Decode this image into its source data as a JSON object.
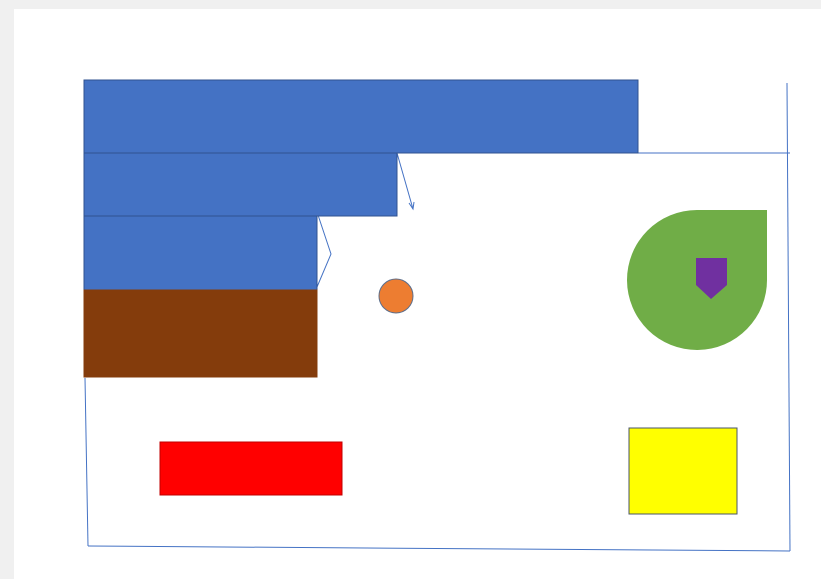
{
  "colors": {
    "blue": "#4472C4",
    "blue_outline": "#2F528F",
    "brown": "#843C0C",
    "red": "#FF0000",
    "yellow": "#FFFF00",
    "green": "#70AD47",
    "purple": "#7030A0",
    "orange": "#ED7D31",
    "line": "#4472C4"
  },
  "shapes": [
    {
      "name": "blue-bar-top",
      "kind": "rectangle",
      "color": "blue"
    },
    {
      "name": "blue-bar-middle",
      "kind": "rectangle",
      "color": "blue"
    },
    {
      "name": "blue-bar-bottom",
      "kind": "rectangle",
      "color": "blue"
    },
    {
      "name": "brown-rectangle",
      "kind": "rectangle",
      "color": "brown"
    },
    {
      "name": "red-rectangle",
      "kind": "rectangle",
      "color": "red"
    },
    {
      "name": "yellow-square",
      "kind": "rectangle",
      "color": "yellow"
    },
    {
      "name": "green-teardrop",
      "kind": "teardrop",
      "color": "green"
    },
    {
      "name": "purple-pentagon",
      "kind": "pentagon",
      "color": "purple"
    },
    {
      "name": "orange-circle",
      "kind": "circle",
      "color": "orange"
    }
  ]
}
